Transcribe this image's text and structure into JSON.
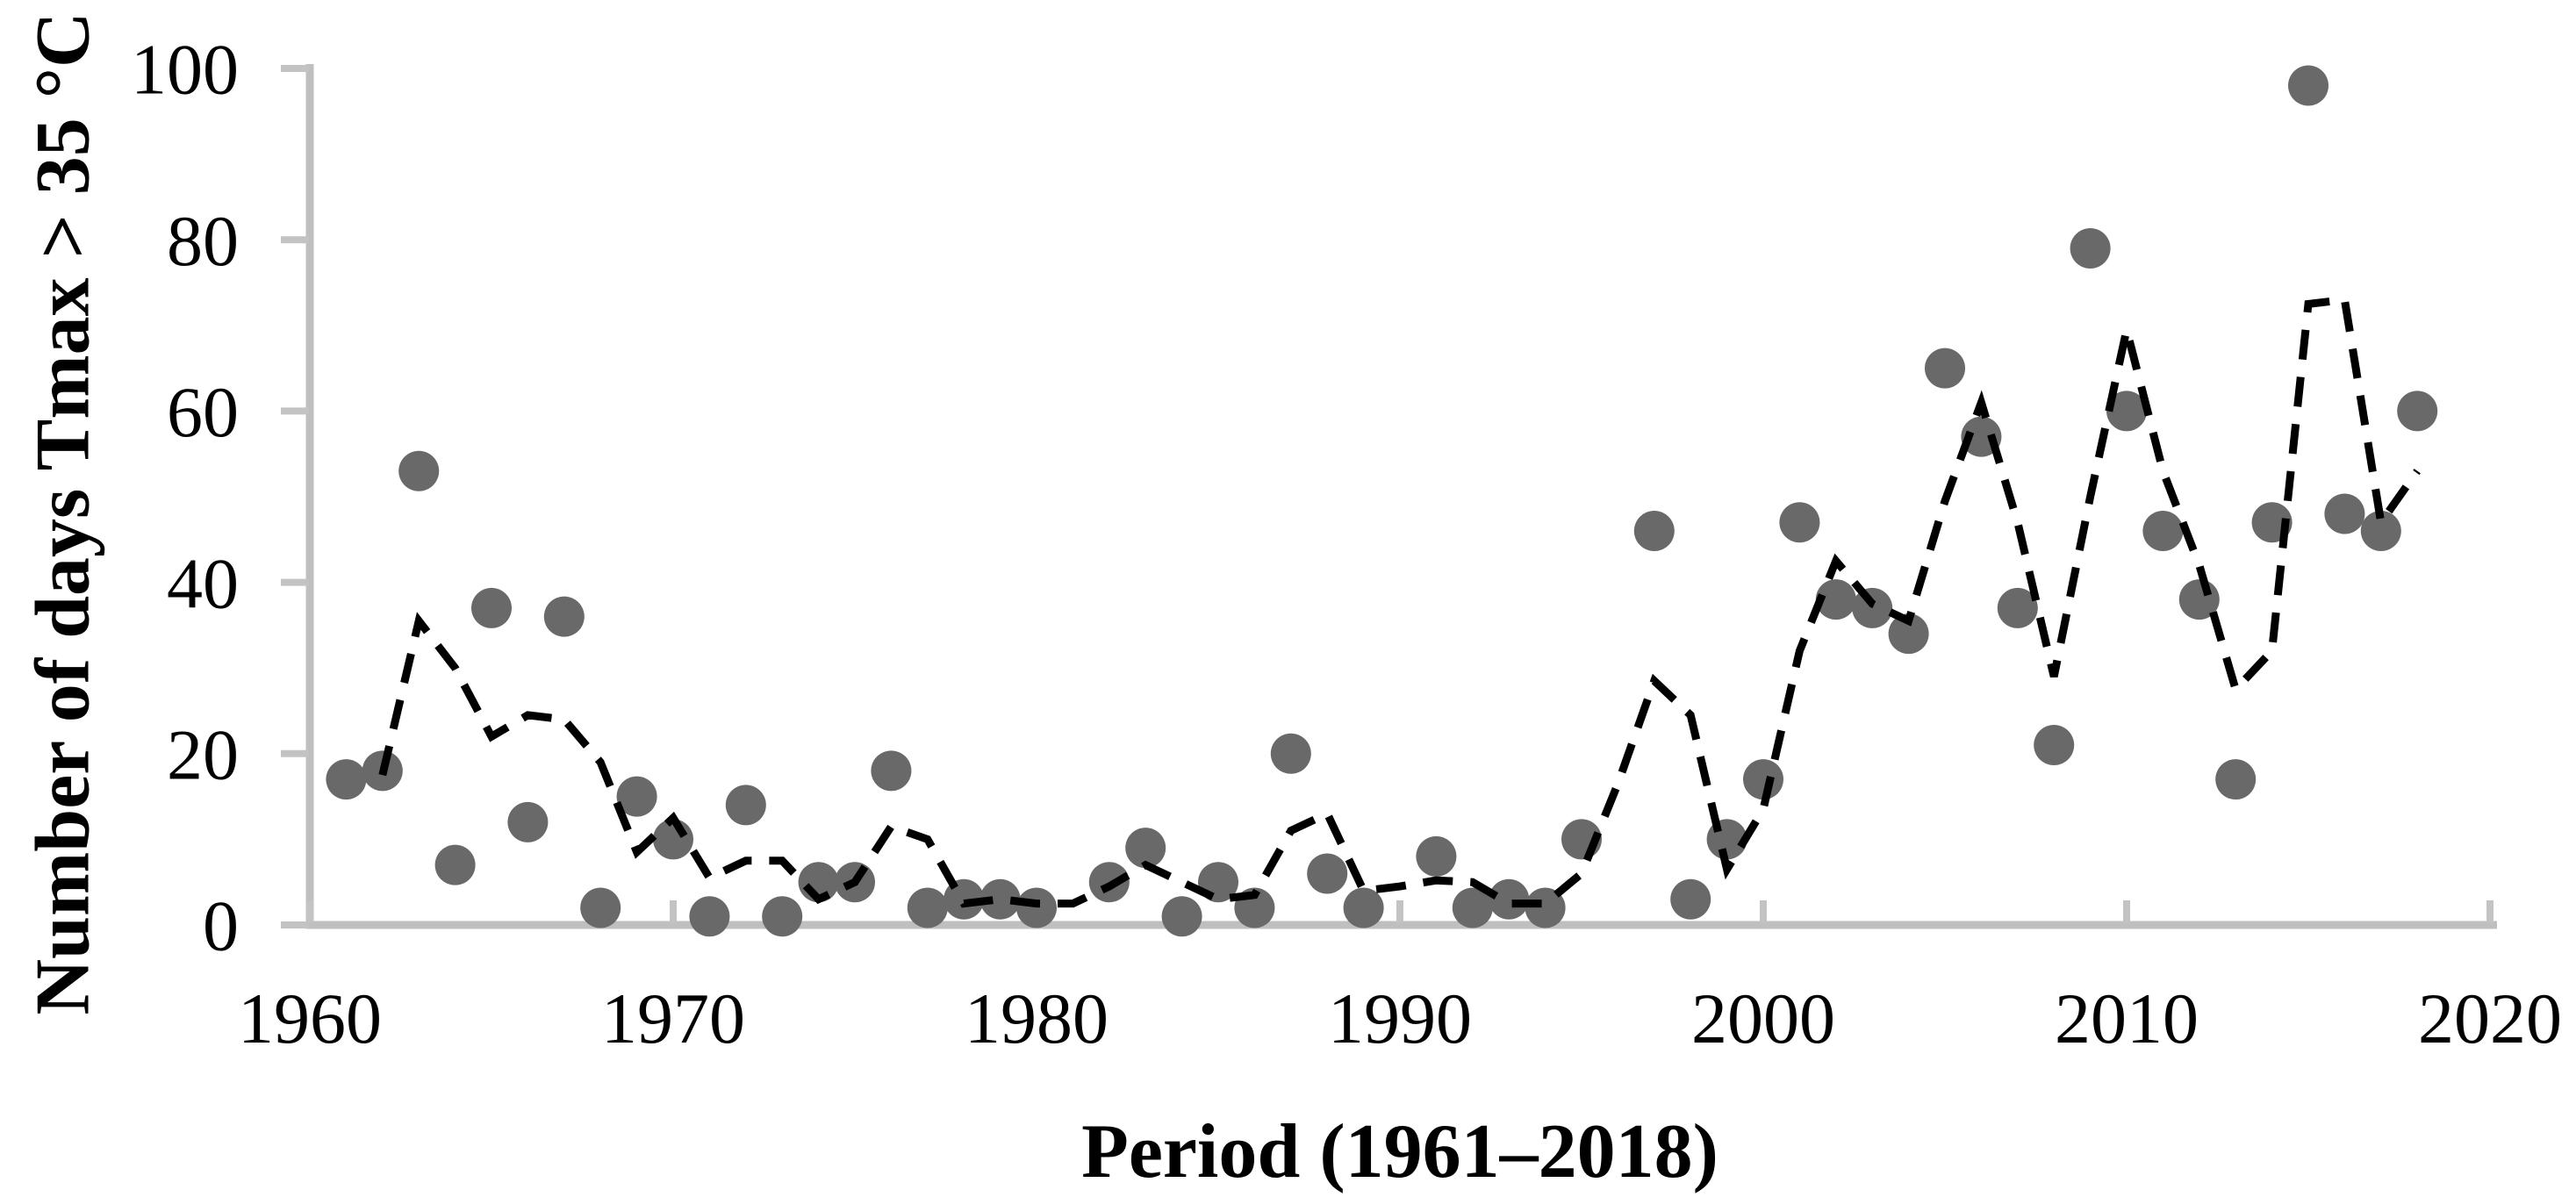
{
  "figure": {
    "x_axis_title": "Period (1961–2018)",
    "y_axis_title": "Number of days Tmax > 35 °C"
  },
  "chart_data": {
    "type": "scatter",
    "title": "",
    "xlabel": "Period (1961–2018)",
    "ylabel": "Number of days Tmax > 35 °C",
    "xlim": [
      1960,
      2020
    ],
    "ylim": [
      0,
      100
    ],
    "x_ticks": [
      1960,
      1970,
      1980,
      1990,
      2000,
      2010,
      2020
    ],
    "y_ticks": [
      0,
      20,
      40,
      60,
      80,
      100
    ],
    "grid": false,
    "legend_position": "none",
    "colors": {
      "marker": "#696969",
      "trend_line": "#000000",
      "axis": "#bfbfbf",
      "tick": "#c3c3c3",
      "text": "#000000",
      "background": "#ffffff"
    },
    "series": [
      {
        "name": "points",
        "type": "scatter",
        "points": [
          [
            1961,
            17
          ],
          [
            1962,
            18
          ],
          [
            1963,
            53
          ],
          [
            1964,
            7
          ],
          [
            1965,
            37
          ],
          [
            1966,
            12
          ],
          [
            1967,
            36
          ],
          [
            1968,
            2
          ],
          [
            1969,
            15
          ],
          [
            1970,
            10
          ],
          [
            1971,
            1
          ],
          [
            1972,
            14
          ],
          [
            1973,
            1
          ],
          [
            1974,
            5
          ],
          [
            1975,
            5
          ],
          [
            1976,
            18
          ],
          [
            1977,
            2
          ],
          [
            1978,
            3
          ],
          [
            1979,
            3
          ],
          [
            1980,
            2
          ],
          [
            1982,
            5
          ],
          [
            1983,
            9
          ],
          [
            1984,
            1
          ],
          [
            1985,
            5
          ],
          [
            1986,
            2
          ],
          [
            1987,
            20
          ],
          [
            1988,
            6
          ],
          [
            1989,
            2
          ],
          [
            1991,
            8
          ],
          [
            1992,
            2
          ],
          [
            1993,
            3
          ],
          [
            1994,
            2
          ],
          [
            1995,
            10
          ],
          [
            1997,
            46
          ],
          [
            1998,
            3
          ],
          [
            1999,
            10
          ],
          [
            2000,
            17
          ],
          [
            2001,
            47
          ],
          [
            2002,
            38
          ],
          [
            2003,
            37
          ],
          [
            2004,
            34
          ],
          [
            2005,
            65
          ],
          [
            2006,
            57
          ],
          [
            2007,
            37
          ],
          [
            2008,
            21
          ],
          [
            2009,
            79
          ],
          [
            2010,
            60
          ],
          [
            2011,
            46
          ],
          [
            2012,
            38
          ],
          [
            2013,
            17
          ],
          [
            2014,
            47
          ],
          [
            2015,
            98
          ],
          [
            2016,
            48
          ],
          [
            2017,
            46
          ],
          [
            2018,
            60
          ]
        ]
      },
      {
        "name": "dashed_trend",
        "type": "line",
        "dashed": true,
        "points": [
          [
            1962,
            17.5
          ],
          [
            1963,
            35.5
          ],
          [
            1964,
            30
          ],
          [
            1965,
            22
          ],
          [
            1966,
            24.5
          ],
          [
            1967,
            24
          ],
          [
            1968,
            19
          ],
          [
            1969,
            8.5
          ],
          [
            1970,
            12.5
          ],
          [
            1971,
            5.5
          ],
          [
            1972,
            7.5
          ],
          [
            1973,
            7.5
          ],
          [
            1974,
            3
          ],
          [
            1975,
            5
          ],
          [
            1976,
            11.5
          ],
          [
            1977,
            10
          ],
          [
            1978,
            2.5
          ],
          [
            1979,
            3
          ],
          [
            1980,
            2.5
          ],
          [
            1981,
            2.5
          ],
          [
            1982,
            4.5
          ],
          [
            1983,
            7
          ],
          [
            1984,
            5
          ],
          [
            1985,
            3
          ],
          [
            1986,
            3.5
          ],
          [
            1987,
            11
          ],
          [
            1988,
            13
          ],
          [
            1989,
            4
          ],
          [
            1990,
            4.5
          ],
          [
            1991,
            5.2
          ],
          [
            1992,
            5
          ],
          [
            1993,
            2.5
          ],
          [
            1994,
            2.5
          ],
          [
            1995,
            6
          ],
          [
            1996,
            16.5
          ],
          [
            1997,
            28.5
          ],
          [
            1998,
            24.5
          ],
          [
            1999,
            6.5
          ],
          [
            2000,
            13.5
          ],
          [
            2001,
            32
          ],
          [
            2002,
            42.5
          ],
          [
            2003,
            37.5
          ],
          [
            2004,
            35.5
          ],
          [
            2005,
            49.5
          ],
          [
            2006,
            61
          ],
          [
            2007,
            47
          ],
          [
            2008,
            29
          ],
          [
            2009,
            50
          ],
          [
            2010,
            69.5
          ],
          [
            2011,
            53
          ],
          [
            2012,
            42
          ],
          [
            2013,
            27.5
          ],
          [
            2014,
            32
          ],
          [
            2015,
            72.5
          ],
          [
            2016,
            73
          ],
          [
            2017,
            47
          ],
          [
            2018,
            53
          ]
        ]
      }
    ]
  }
}
